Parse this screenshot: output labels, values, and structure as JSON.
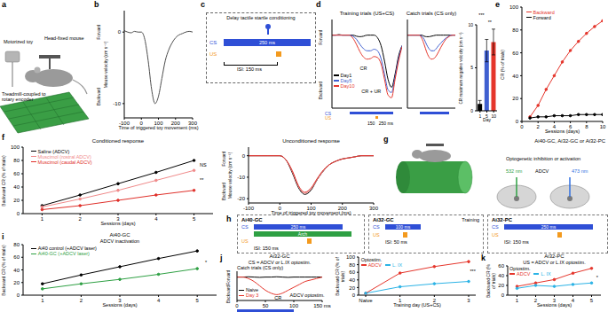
{
  "chart_data": [
    {
      "panel": "b",
      "type": "line",
      "x": [
        -100,
        -80,
        -60,
        -40,
        -20,
        0,
        20,
        40,
        60,
        80,
        100,
        120,
        140,
        160,
        180,
        200,
        220,
        240,
        260,
        280,
        300
      ],
      "series": [
        {
          "color": "#4d4d4d",
          "values": [
            0.2,
            0,
            -0.1,
            0.1,
            0,
            0,
            -1,
            -4,
            -8,
            -10,
            -9,
            -6.5,
            -4,
            -2.5,
            -1.5,
            -0.8,
            -0.4,
            -0.2,
            0,
            0.1,
            0
          ]
        }
      ],
      "xlim": [
        -100,
        300
      ],
      "xticks": [
        -100,
        0,
        100,
        200,
        300
      ],
      "ylim": [
        -12,
        3
      ],
      "yticks": [
        -10,
        0
      ],
      "xlabel": "Time of triggered toy movement (ms)",
      "ylabel": "Mouse velocity (cm s⁻¹)",
      "direction_labels": [
        "Backward",
        "Forward"
      ]
    },
    {
      "panel": "d",
      "type": "line",
      "title": "Training trials (US+CS)",
      "x": [
        -100,
        -80,
        -60,
        -40,
        -20,
        0,
        20,
        40,
        60,
        80,
        100,
        120,
        140,
        160,
        180,
        200,
        220,
        240,
        260,
        280,
        300
      ],
      "series": [
        {
          "name": "Day1",
          "color": "#000000",
          "values": [
            0,
            0,
            0.1,
            0,
            0,
            0,
            0,
            -0.2,
            -0.3,
            -0.2,
            0,
            0,
            0,
            -0.5,
            -2,
            -5,
            -8.5,
            -10,
            -7.5,
            -4,
            -2
          ]
        },
        {
          "name": "Day5",
          "color": "#3f5fd0",
          "values": [
            0,
            0,
            0,
            0,
            0,
            0,
            -0.2,
            -0.8,
            -1.8,
            -2.6,
            -3,
            -3,
            -2.7,
            -3,
            -4.5,
            -7.5,
            -10.5,
            -11,
            -8,
            -4.5,
            -2
          ]
        },
        {
          "name": "Day10",
          "color": "#e5352b",
          "values": [
            0,
            0,
            0,
            0,
            0,
            0,
            -0.6,
            -1.8,
            -3.2,
            -4.2,
            -4.6,
            -4.5,
            -4.1,
            -4.3,
            -5.5,
            -8.5,
            -11.5,
            -12,
            -8.5,
            -5,
            -2.2
          ]
        }
      ],
      "xlim": [
        -100,
        300
      ],
      "ylim": [
        -14,
        3
      ],
      "tick_labels": false,
      "direction_labels": [
        "Backward",
        "Forward"
      ],
      "stimuli": [
        {
          "name": "CS",
          "color": "#2f4fd6",
          "start": 0,
          "end": 250,
          "label": "250 ms"
        },
        {
          "name": "US",
          "color": "#f39a1e",
          "start": 150,
          "end": 165,
          "label": "150"
        }
      ],
      "annotations": [
        "CR",
        "CR + UR"
      ]
    },
    {
      "type": "line",
      "title": "Catch trials (CS only)",
      "x": [
        -100,
        -80,
        -60,
        -40,
        -20,
        0,
        20,
        40,
        60,
        80,
        100,
        120,
        140,
        160,
        180,
        200,
        220,
        240,
        260,
        280,
        300
      ],
      "series": [
        {
          "color": "#000000",
          "values": [
            0,
            0,
            0,
            0,
            0,
            0,
            0,
            -0.2,
            -0.3,
            -0.3,
            -0.2,
            -0.1,
            0,
            0,
            0,
            0,
            0,
            0,
            0,
            0,
            0
          ]
        },
        {
          "color": "#3f5fd0",
          "values": [
            0,
            0,
            0,
            0,
            0,
            0,
            -0.2,
            -0.8,
            -1.8,
            -2.6,
            -3,
            -3,
            -2.6,
            -2,
            -1.5,
            -1,
            -0.6,
            -0.3,
            0,
            0,
            0
          ]
        },
        {
          "color": "#e5352b",
          "values": [
            0,
            0,
            0,
            0,
            0,
            0,
            -0.6,
            -1.8,
            -3.2,
            -4.2,
            -4.6,
            -4.5,
            -4,
            -3.2,
            -2.3,
            -1.5,
            -0.8,
            -0.4,
            -0.1,
            0,
            0
          ]
        }
      ],
      "xlim": [
        -100,
        300
      ],
      "ylim": [
        -14,
        3
      ],
      "tick_labels": false,
      "stimuli": [
        {
          "color": "#2f4fd6",
          "start": 0,
          "end": 250
        }
      ]
    },
    {
      "type": "bar",
      "categories": [
        "1",
        "5",
        "10"
      ],
      "values": [
        0.8,
        7,
        8
      ],
      "errors": [
        0.4,
        1.3,
        1.5
      ],
      "colors": [
        "#000000",
        "#3f5fd0",
        "#e5352b"
      ],
      "ylim": [
        0,
        10
      ],
      "yticks": [
        0,
        5,
        10
      ],
      "xlabel": "Day",
      "ylabel": "CR maximum negative velocity (cm s⁻¹)",
      "annotations": [
        "***",
        "**"
      ]
    },
    {
      "panel": "e",
      "type": "line",
      "marker": "circle",
      "x": [
        1,
        2,
        3,
        4,
        5,
        6,
        7,
        8,
        9,
        10
      ],
      "series": [
        {
          "name": "Backward",
          "color": "#e5352b",
          "values": [
            4,
            14,
            28,
            40,
            52,
            62,
            70,
            77,
            83,
            88
          ]
        },
        {
          "name": "Forward",
          "color": "#000000",
          "values": [
            3,
            4,
            4,
            5,
            5,
            5,
            6,
            6,
            6,
            6
          ]
        }
      ],
      "xlim": [
        0,
        10
      ],
      "xticks": [
        0,
        2,
        4,
        6,
        8,
        10
      ],
      "ylim": [
        0,
        100
      ],
      "yticks": [
        0,
        20,
        40,
        60,
        80,
        100
      ],
      "xlabel": "Sessions (days)",
      "ylabel": "CR (% of trials)"
    },
    {
      "panel": "f",
      "type": "line",
      "marker": "circle",
      "title": "Conditioned response",
      "x": [
        1,
        2,
        3,
        4,
        5
      ],
      "series": [
        {
          "name": "Saline (ADCV)",
          "color": "#000000",
          "values": [
            12,
            28,
            45,
            62,
            80
          ]
        },
        {
          "name": "Muscimol (rostral ADCV)",
          "color": "#f08a8a",
          "values": [
            10,
            22,
            35,
            50,
            65
          ]
        },
        {
          "name": "Muscimol (caudal ADCV)",
          "color": "#e0302a",
          "values": [
            6,
            12,
            20,
            28,
            35
          ]
        }
      ],
      "xlim": [
        0.5,
        5.5
      ],
      "xticks": [
        1,
        2,
        3,
        4,
        5
      ],
      "ylim": [
        0,
        100
      ],
      "yticks": [
        0,
        20,
        40,
        60,
        80,
        100
      ],
      "xlabel": "Sessions (days)",
      "ylabel": "Backward CR (% of trials)",
      "annotations": [
        "NS",
        "**"
      ]
    },
    {
      "type": "line",
      "title": "Unconditioned response",
      "x": [
        -100,
        -80,
        -60,
        -40,
        -20,
        0,
        20,
        40,
        60,
        80,
        100,
        120,
        140,
        160,
        180,
        200,
        220,
        240,
        260,
        280,
        300
      ],
      "series": [
        {
          "color": "#000000",
          "values": [
            0,
            0,
            0,
            0,
            0,
            0,
            -2,
            -8,
            -15,
            -18,
            -16,
            -11,
            -7,
            -4,
            -2.5,
            -1.5,
            -1,
            -0.5,
            0,
            0,
            0
          ]
        },
        {
          "color": "#f08a8a",
          "values": [
            0,
            0,
            0,
            0,
            0,
            0,
            -2,
            -7.5,
            -14.5,
            -17.5,
            -15.5,
            -11,
            -7,
            -4,
            -2.5,
            -1.5,
            -1,
            -0.5,
            0,
            0,
            0
          ]
        },
        {
          "color": "#e0302a",
          "values": [
            0,
            0,
            0,
            0,
            0,
            0,
            -2,
            -7,
            -14,
            -17,
            -15,
            -10.5,
            -6.5,
            -4,
            -2.5,
            -1.5,
            -1,
            -0.5,
            0,
            0,
            0
          ]
        }
      ],
      "xlim": [
        -100,
        300
      ],
      "xticks": [
        -100,
        0,
        100,
        200,
        300
      ],
      "ylim": [
        -22,
        4
      ],
      "yticks": [
        -20,
        -10,
        0
      ],
      "xlabel": "Time of triggered toy movement (ms)",
      "ylabel": "Mouse velocity (cm s⁻¹)",
      "direction_labels": [
        "Backward",
        "Forward"
      ]
    },
    {
      "panel": "i",
      "type": "line",
      "marker": "circle",
      "title": "Ai40-GC",
      "subtitle": "ADCV inactivation",
      "x": [
        1,
        2,
        3,
        4,
        5
      ],
      "series": [
        {
          "name": "Ai40 control (+ADCV laser)",
          "color": "#000000",
          "values": [
            18,
            32,
            45,
            58,
            70
          ]
        },
        {
          "name": "Ai40-GC (+ADCV laser)",
          "color": "#2ea043",
          "values": [
            10,
            18,
            25,
            33,
            42
          ]
        }
      ],
      "xlim": [
        0.5,
        5.5
      ],
      "xticks": [
        1,
        2,
        3,
        4,
        5
      ],
      "ylim": [
        0,
        80
      ],
      "yticks": [
        0,
        20,
        40,
        60,
        80
      ],
      "xlabel": "Sessions (days)",
      "ylabel": "Backward CR (% of trials)",
      "annotations": [
        "*"
      ]
    },
    {
      "panel": "j",
      "type": "line",
      "title": "Ai32-GC",
      "subtitle": "CS = ADCV or L.IX optostim.",
      "x": [
        0,
        10,
        20,
        30,
        40,
        50,
        60,
        70,
        80,
        90,
        100,
        110,
        120,
        130,
        140,
        150
      ],
      "series": [
        {
          "name": "Naive",
          "color": "#000000",
          "values": [
            0,
            0,
            0.1,
            0,
            -0.1,
            0,
            0,
            0.1,
            0,
            -0.1,
            0,
            0,
            0,
            0,
            0,
            0
          ]
        },
        {
          "name": "Day 3",
          "color": "#e5352b",
          "values": [
            0,
            0,
            -0.5,
            -1.5,
            -3,
            -4.5,
            -5.5,
            -6,
            -5.5,
            -4.5,
            -3.5,
            -2.5,
            -1.5,
            -1,
            -0.5,
            0
          ]
        }
      ],
      "xlim": [
        0,
        150
      ],
      "xticks": [
        0,
        50,
        100,
        {
          "value": 150,
          "label": "150 ms"
        }
      ],
      "ylim": [
        -8,
        2
      ],
      "tick_labels": "x",
      "direction_labels": [
        "Backward",
        "Forward"
      ],
      "stimuli": [
        {
          "color": "#2f4fd6",
          "start": 0,
          "end": 100
        }
      ],
      "annotations": [
        "Catch trials (CS only)",
        "CR",
        "ADCV optostim."
      ]
    },
    {
      "type": "line",
      "marker": "circle",
      "legend_title": "Optostim.",
      "categories": [
        "Naive",
        "1",
        "2",
        "3"
      ],
      "series": [
        {
          "name": "ADCV",
          "color": "#e5352b",
          "values": [
            5,
            58,
            75,
            88
          ]
        },
        {
          "name": "L. IX",
          "color": "#2bb3e6",
          "values": [
            5,
            22,
            30,
            36
          ]
        }
      ],
      "ylim": [
        0,
        100
      ],
      "yticks": [
        0,
        20,
        40,
        60,
        80,
        100
      ],
      "xlabel": "Training day (US+CS)",
      "ylabel": "Backward CR (% of trials)",
      "annotations": [
        "***"
      ]
    },
    {
      "panel": "k",
      "type": "line",
      "marker": "circle",
      "title": "Ai32-PC",
      "subtitle": "US = ADCV or L.IX optostim.",
      "legend_title": "Optostim.",
      "x": [
        1,
        2,
        3,
        4,
        5
      ],
      "series": [
        {
          "name": "ADCV",
          "color": "#e5352b",
          "values": [
            18,
            25,
            32,
            45,
            55
          ]
        },
        {
          "name": "L. IX",
          "color": "#2bb3e6",
          "values": [
            14,
            20,
            18,
            22,
            25
          ]
        }
      ],
      "xlim": [
        0.5,
        5.5
      ],
      "xticks": [
        1,
        2,
        3,
        4,
        5
      ],
      "ylim": [
        0,
        60
      ],
      "yticks": [
        0,
        20,
        40,
        60
      ],
      "xlabel": "Sessions (days)",
      "ylabel": "Backward CR (% of trials)",
      "annotations": [
        "*"
      ]
    }
  ],
  "diagrams": [
    {
      "panel": "a",
      "labels": [
        "Motorized toy",
        "Head-fixed mouse",
        "Treadmill-coupled to rotary encoder"
      ]
    },
    {
      "panel": "c",
      "title": "Delay tactile startle conditioning",
      "cs": "CS",
      "us": "US",
      "duration": "250 ms",
      "isi": "ISI: 150 ms"
    },
    {
      "panel": "g",
      "title": "Ai40-GC, Ai32-GC or Ai32-PC",
      "subtitle": "Optogenetic inhibition or activation",
      "labels": [
        "532 nm",
        "ADCV",
        "473 nm"
      ]
    },
    {
      "panel": "h",
      "boxes": [
        {
          "title": "Ai40-GC",
          "cs": "CS",
          "arch": "Arch",
          "us": "US",
          "duration": "250 ms",
          "isi": "ISI: 150 ms"
        },
        {
          "header": "Training",
          "title": "Ai32-GC",
          "cs": "CS",
          "us": "US",
          "duration": "100 ms",
          "isi": "ISI: 50 ms"
        },
        {
          "title": "Ai32-PC",
          "cs": "CS",
          "us": "US",
          "duration": "250 ms",
          "isi": "ISI: 150 ms"
        }
      ]
    }
  ]
}
